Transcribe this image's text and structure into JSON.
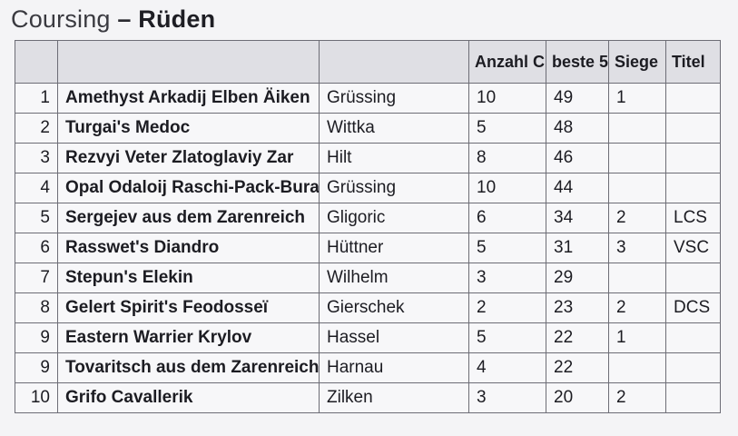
{
  "title": {
    "light": "Coursing",
    "separator": "–",
    "bold": "Rüden"
  },
  "table": {
    "headers": [
      "",
      "",
      "",
      "Anzahl C.",
      "beste 5",
      "Siege",
      "Titel"
    ],
    "rows": [
      {
        "rank": "1",
        "name": "Amethyst Arkadij Elben Äiken",
        "owner": "Grüssing",
        "count": "10",
        "best5": "49",
        "wins": "1",
        "title": ""
      },
      {
        "rank": "2",
        "name": "Turgai's Medoc",
        "owner": "Wittka",
        "count": "5",
        "best5": "48",
        "wins": "",
        "title": ""
      },
      {
        "rank": "3",
        "name": "Rezvyi Veter Zlatoglaviy Zar",
        "owner": "Hilt",
        "count": "8",
        "best5": "46",
        "wins": "",
        "title": ""
      },
      {
        "rank": "4",
        "name": "Opal Odaloij Raschi-Pack-Buran",
        "owner": "Grüssing",
        "count": "10",
        "best5": "44",
        "wins": "",
        "title": ""
      },
      {
        "rank": "5",
        "name": "Sergejev aus dem Zarenreich",
        "owner": "Gligoric",
        "count": "6",
        "best5": "34",
        "wins": "2",
        "title": "LCS"
      },
      {
        "rank": "6",
        "name": "Rasswet's Diandro",
        "owner": "Hüttner",
        "count": "5",
        "best5": "31",
        "wins": "3",
        "title": "VSC"
      },
      {
        "rank": "7",
        "name": "Stepun's Elekin",
        "owner": "Wilhelm",
        "count": "3",
        "best5": "29",
        "wins": "",
        "title": ""
      },
      {
        "rank": "8",
        "name": "Gelert Spirit's Feodosseï",
        "owner": "Gierschek",
        "count": "2",
        "best5": "23",
        "wins": "2",
        "title": "DCS"
      },
      {
        "rank": "9",
        "name": "Eastern Warrier Krylov",
        "owner": "Hassel",
        "count": "5",
        "best5": "22",
        "wins": "1",
        "title": ""
      },
      {
        "rank": "9",
        "name": "Tovaritsch aus dem Zarenreich",
        "owner": "Harnau",
        "count": "4",
        "best5": "22",
        "wins": "",
        "title": ""
      },
      {
        "rank": "10",
        "name": "Grifo Cavallerik",
        "owner": "Zilken",
        "count": "3",
        "best5": "20",
        "wins": "2",
        "title": ""
      }
    ]
  }
}
